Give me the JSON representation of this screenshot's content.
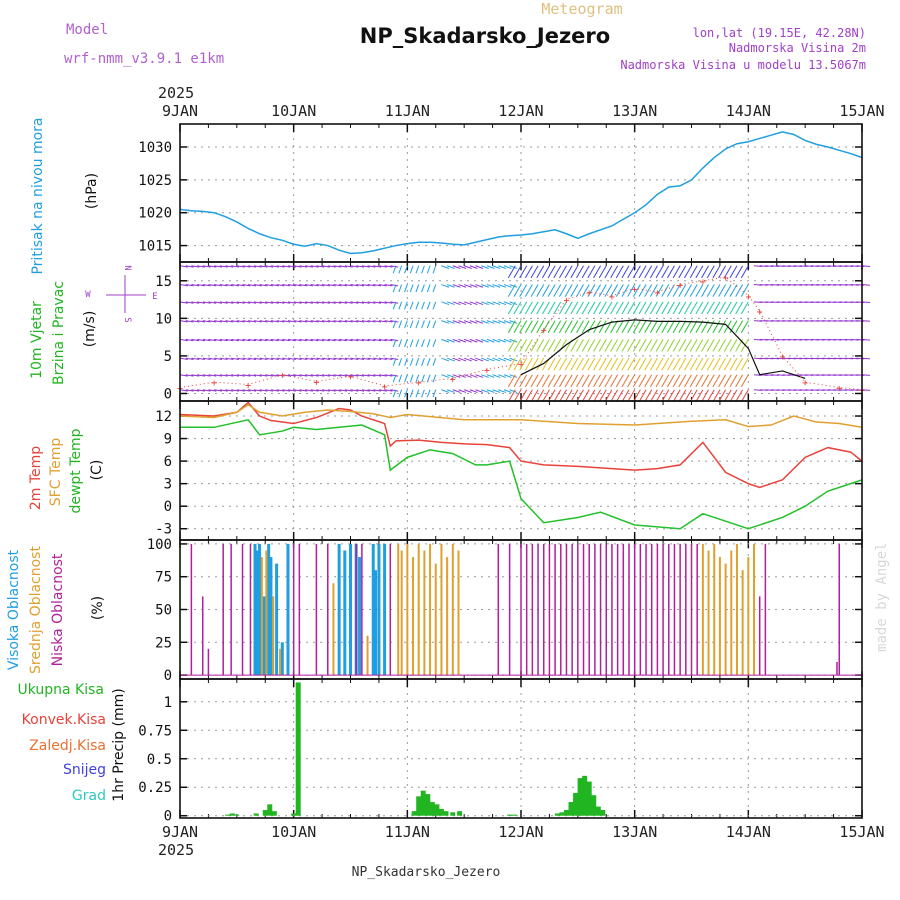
{
  "header": {
    "model_label": "Model",
    "model_name": "wrf-nmm_v3.9.1 e1km",
    "super_title": "Meteogram",
    "title": "NP_Skadarsko_Jezero",
    "lonlat": "lon,lat (19.15E, 42.28N)",
    "elevation": "Nadmorska Visina 2m",
    "model_elevation": "Nadmorska Visina u modelu 13.5067m",
    "bottom_station": "NP_Skadarsko_Jezero",
    "watermark": "made by Angel"
  },
  "time_axis": {
    "year": "2025",
    "ticks": [
      "9JAN",
      "10JAN",
      "11JAN",
      "12JAN",
      "13JAN",
      "14JAN",
      "15JAN"
    ]
  },
  "colors": {
    "pressure": "#1f9ee0",
    "temp2m": "#e8423a",
    "sfc_temp": "#e0a030",
    "dewpoint": "#22c02a",
    "high_cloud": "#1f9ee0",
    "mid_cloud": "#e0a030",
    "low_cloud": "#b0209a",
    "total_precip": "#22b522",
    "conv_precip": "#e8423a",
    "frozen_precip": "#e87030",
    "snow": "#4040e0",
    "graupel": "#30c8c0",
    "wind_speed": "#101010",
    "gust": "#e8423a",
    "direction_label": "#a040c8"
  },
  "chart_data": [
    {
      "type": "line",
      "panel": "pressure",
      "title": "",
      "labels": [
        "Pritisak na nivou mora"
      ],
      "ylabel": "(hPa)",
      "ylim": [
        1012.5,
        1033.5
      ],
      "yticks": [
        1015,
        1020,
        1025,
        1030
      ],
      "grid": true,
      "x_unit": "days since 9JAN 00UTC",
      "series": [
        {
          "name": "Pritisak na nivou mora",
          "x": [
            0,
            0.1,
            0.2,
            0.3,
            0.4,
            0.5,
            0.6,
            0.7,
            0.8,
            0.9,
            1.0,
            1.1,
            1.2,
            1.3,
            1.4,
            1.5,
            1.6,
            1.7,
            1.8,
            1.9,
            2.0,
            2.1,
            2.2,
            2.3,
            2.4,
            2.5,
            2.6,
            2.7,
            2.8,
            2.9,
            3.0,
            3.1,
            3.2,
            3.3,
            3.4,
            3.5,
            3.6,
            3.7,
            3.8,
            3.9,
            4.0,
            4.1,
            4.2,
            4.3,
            4.4,
            4.5,
            4.6,
            4.7,
            4.8,
            4.9,
            5.0,
            5.1,
            5.2,
            5.3,
            5.4,
            5.5,
            5.6,
            5.7,
            5.8,
            5.9,
            6.0
          ],
          "y": [
            1020.5,
            1020.3,
            1020.2,
            1020.0,
            1019.4,
            1018.6,
            1017.6,
            1016.8,
            1016.2,
            1015.8,
            1015.2,
            1014.9,
            1015.3,
            1015.0,
            1014.3,
            1013.8,
            1013.9,
            1014.2,
            1014.6,
            1015.0,
            1015.3,
            1015.5,
            1015.5,
            1015.4,
            1015.2,
            1015.1,
            1015.5,
            1015.9,
            1016.3,
            1016.5,
            1016.6,
            1016.8,
            1017.1,
            1017.4,
            1016.8,
            1016.1,
            1016.8,
            1017.4,
            1018.0,
            1019.0,
            1020.0,
            1021.2,
            1022.8,
            1023.9,
            1024.1,
            1025.0,
            1026.8,
            1028.4,
            1029.7,
            1030.5,
            1030.8,
            1031.3,
            1031.8,
            1032.3,
            1031.9,
            1031.0,
            1030.4,
            1030.0,
            1029.5,
            1029.0,
            1028.4
          ]
        }
      ]
    },
    {
      "type": "line",
      "panel": "wind",
      "title": "",
      "labels": [
        "10m Vjetar",
        "Brzina i Pravac"
      ],
      "ylabel": "(m/s)",
      "direction_legend": {
        "north": "N",
        "south": "S",
        "west": "W",
        "east": "E"
      },
      "ylim": [
        -1,
        17.5
      ],
      "yticks": [
        0,
        5,
        10,
        15
      ],
      "grid": true,
      "x_unit": "days since 9JAN 00UTC",
      "series": [
        {
          "name": "speed",
          "x": [
            3.0,
            3.2,
            3.4,
            3.6,
            3.8,
            4.0,
            4.2,
            4.4,
            4.6,
            4.8,
            5.0,
            5.1,
            5.3,
            5.5
          ],
          "y": [
            2.5,
            4.0,
            6.5,
            8.5,
            9.5,
            9.8,
            9.6,
            9.6,
            9.5,
            9.2,
            6.0,
            2.5,
            3.0,
            2.0
          ]
        },
        {
          "name": "gust",
          "x": [
            0,
            0.3,
            0.6,
            0.9,
            1.2,
            1.5,
            1.8,
            2.1,
            2.4,
            2.7,
            3.0,
            3.2,
            3.4,
            3.6,
            3.8,
            4.0,
            4.2,
            4.4,
            4.6,
            4.8,
            5.0,
            5.1,
            5.3,
            5.5,
            5.8,
            6.0
          ],
          "y": [
            0.8,
            1.5,
            1.2,
            2.5,
            1.6,
            2.3,
            1.0,
            1.5,
            2.0,
            3.2,
            4.0,
            8.5,
            12.5,
            13.5,
            13.0,
            14.0,
            13.5,
            14.5,
            15.0,
            15.5,
            13.0,
            11.0,
            5.0,
            1.5,
            0.8,
            0.5
          ]
        }
      ],
      "arrow_rows": [
        0.5,
        2.5,
        4.7,
        7.2,
        9.7,
        12.2,
        14.5,
        17.0
      ],
      "arrow_dirs": [
        {
          "x0": 0,
          "x1": 1.9,
          "deg": 100
        },
        {
          "x0": 1.9,
          "x1": 2.3,
          "deg": 200
        },
        {
          "x0": 2.3,
          "x1": 2.9,
          "deg": 110
        },
        {
          "x0": 2.9,
          "x1": 5.0,
          "deg": 210
        },
        {
          "x0": 5.0,
          "x1": 6.0,
          "deg": 95
        }
      ]
    },
    {
      "type": "line",
      "panel": "temperature",
      "title": "",
      "labels": [
        "2m Temp",
        "SFC Temp",
        "dewpt Temp"
      ],
      "ylabel": "(C)",
      "ylim": [
        -4.5,
        14
      ],
      "yticks": [
        -3,
        0,
        3,
        6,
        9,
        12
      ],
      "grid": true,
      "x_unit": "days since 9JAN 00UTC",
      "series": [
        {
          "name": "2m Temp",
          "x": [
            0,
            0.3,
            0.5,
            0.6,
            0.7,
            0.8,
            1.0,
            1.2,
            1.4,
            1.5,
            1.6,
            1.8,
            1.85,
            1.9,
            2.1,
            2.3,
            2.5,
            2.7,
            2.9,
            3.0,
            3.2,
            3.5,
            3.8,
            4.0,
            4.2,
            4.4,
            4.6,
            4.7,
            4.8,
            5.0,
            5.1,
            5.3,
            5.5,
            5.7,
            5.9,
            6.0
          ],
          "y": [
            12.2,
            12.0,
            12.5,
            13.8,
            12.0,
            11.4,
            11.0,
            11.8,
            13.0,
            12.8,
            12.0,
            11.0,
            8.0,
            8.7,
            8.8,
            8.5,
            8.3,
            8.2,
            7.8,
            6.0,
            5.5,
            5.3,
            5.0,
            4.8,
            5.0,
            5.5,
            8.5,
            6.5,
            4.5,
            3.0,
            2.5,
            3.5,
            6.5,
            7.8,
            7.2,
            6.0
          ]
        },
        {
          "name": "SFC Temp",
          "x": [
            0,
            0.3,
            0.5,
            0.6,
            0.7,
            0.9,
            1.1,
            1.3,
            1.5,
            1.7,
            1.85,
            2.0,
            2.5,
            3.0,
            3.5,
            4.0,
            4.5,
            4.8,
            5.0,
            5.2,
            5.4,
            5.6,
            5.8,
            6.0
          ],
          "y": [
            12.0,
            11.8,
            12.5,
            13.5,
            12.5,
            12.0,
            12.5,
            12.8,
            12.6,
            12.3,
            11.8,
            12.2,
            11.5,
            11.5,
            11.0,
            10.8,
            11.3,
            11.5,
            10.6,
            10.8,
            12.0,
            11.2,
            11.0,
            10.5
          ]
        },
        {
          "name": "dewpt Temp",
          "x": [
            0,
            0.3,
            0.6,
            0.7,
            0.9,
            1.0,
            1.2,
            1.4,
            1.6,
            1.8,
            1.85,
            2.0,
            2.2,
            2.4,
            2.6,
            2.7,
            2.9,
            3.0,
            3.2,
            3.5,
            3.7,
            4.0,
            4.4,
            4.6,
            4.8,
            5.0,
            5.3,
            5.5,
            5.7,
            6.0
          ],
          "y": [
            10.5,
            10.5,
            11.5,
            9.5,
            10.0,
            10.5,
            10.2,
            10.5,
            10.8,
            9.5,
            4.8,
            6.5,
            7.5,
            7.0,
            5.5,
            5.5,
            6.0,
            1.0,
            -2.2,
            -1.5,
            -0.8,
            -2.5,
            -3.0,
            -1.0,
            -2.0,
            -3.0,
            -1.5,
            0.0,
            2.0,
            3.5
          ]
        }
      ]
    },
    {
      "type": "bar",
      "panel": "clouds",
      "title": "",
      "labels": [
        "Visoka Oblacnost",
        "Srednja Oblacnost",
        "Niska Oblacnost"
      ],
      "ylabel": "(%)",
      "ylim": [
        -3,
        103
      ],
      "yticks": [
        0,
        25,
        50,
        75,
        100
      ],
      "grid": true,
      "x_unit": "days since 9JAN 00UTC",
      "series": [
        {
          "name": "Visoka Oblacnost",
          "x": [
            0.66,
            0.68,
            0.7,
            0.74,
            0.78,
            0.8,
            0.85,
            0.9,
            0.95,
            1.4,
            1.45,
            1.5,
            1.55,
            1.58,
            1.7,
            1.72,
            1.75,
            1.8
          ],
          "values": [
            100,
            95,
            100,
            60,
            100,
            90,
            85,
            25,
            100,
            100,
            95,
            100,
            100,
            90,
            100,
            80,
            100,
            100
          ]
        },
        {
          "name": "Srednja Oblacnost",
          "x": [
            0.72,
            0.76,
            0.82,
            0.88,
            1.35,
            1.65,
            1.92,
            1.95,
            2.0,
            2.05,
            2.1,
            2.15,
            2.2,
            2.25,
            2.3,
            2.35,
            2.4,
            2.45,
            4.6,
            4.65,
            4.7,
            4.75,
            4.8,
            4.85,
            4.9,
            4.95,
            5.0,
            5.05
          ],
          "values": [
            90,
            95,
            60,
            20,
            70,
            30,
            100,
            95,
            100,
            90,
            100,
            95,
            100,
            85,
            100,
            90,
            100,
            95,
            100,
            95,
            100,
            90,
            85,
            95,
            100,
            80,
            90,
            100
          ]
        },
        {
          "name": "Niska Oblacnost",
          "x": [
            0.1,
            0.2,
            0.25,
            0.38,
            0.45,
            0.55,
            0.62,
            1.0,
            1.05,
            1.2,
            1.3,
            1.55,
            1.6,
            1.85,
            2.8,
            2.9,
            3.0,
            3.05,
            3.1,
            3.15,
            3.2,
            3.25,
            3.3,
            3.35,
            3.4,
            3.45,
            3.5,
            3.55,
            3.6,
            3.65,
            3.7,
            3.75,
            3.8,
            3.85,
            3.9,
            3.95,
            4.0,
            4.05,
            4.1,
            4.15,
            4.2,
            4.25,
            4.3,
            4.35,
            4.4,
            4.45,
            4.5,
            4.55,
            5.1,
            5.15,
            5.78,
            5.8
          ],
          "values": [
            100,
            60,
            20,
            100,
            100,
            100,
            100,
            100,
            100,
            100,
            100,
            100,
            100,
            100,
            100,
            100,
            100,
            100,
            100,
            100,
            100,
            100,
            100,
            100,
            100,
            100,
            100,
            100,
            100,
            100,
            100,
            100,
            100,
            100,
            100,
            100,
            100,
            100,
            100,
            100,
            100,
            100,
            100,
            100,
            100,
            100,
            100,
            100,
            60,
            100,
            10,
            100
          ]
        }
      ]
    },
    {
      "type": "bar",
      "panel": "precip",
      "title": "",
      "labels": [
        "Ukupna Kisa",
        "Konvek.Kisa",
        "Zaledj.Kisa",
        "Snijeg",
        "Grad"
      ],
      "ylabel": "1hr Precip (mm)",
      "ylim": [
        -0.02,
        1.2
      ],
      "yticks": [
        0,
        0.25,
        0.5,
        0.75,
        1
      ],
      "grid": true,
      "x_unit": "days since 9JAN 00UTC",
      "series": [
        {
          "name": "Ukupna Kisa",
          "x": [
            0.42,
            0.46,
            0.5,
            0.67,
            0.75,
            0.79,
            0.83,
            1.0,
            1.04,
            2.06,
            2.1,
            2.14,
            2.18,
            2.22,
            2.26,
            2.3,
            2.34,
            2.4,
            2.46,
            2.9,
            2.94,
            3.32,
            3.36,
            3.4,
            3.44,
            3.48,
            3.52,
            3.56,
            3.6,
            3.64,
            3.68,
            3.72
          ],
          "values": [
            0.01,
            0.02,
            0.01,
            0.02,
            0.05,
            0.1,
            0.04,
            0.02,
            1.17,
            0.04,
            0.17,
            0.22,
            0.19,
            0.12,
            0.1,
            0.06,
            0.04,
            0.03,
            0.04,
            0.01,
            0.01,
            0.02,
            0.03,
            0.05,
            0.12,
            0.2,
            0.33,
            0.35,
            0.3,
            0.18,
            0.08,
            0.05
          ]
        }
      ]
    }
  ]
}
